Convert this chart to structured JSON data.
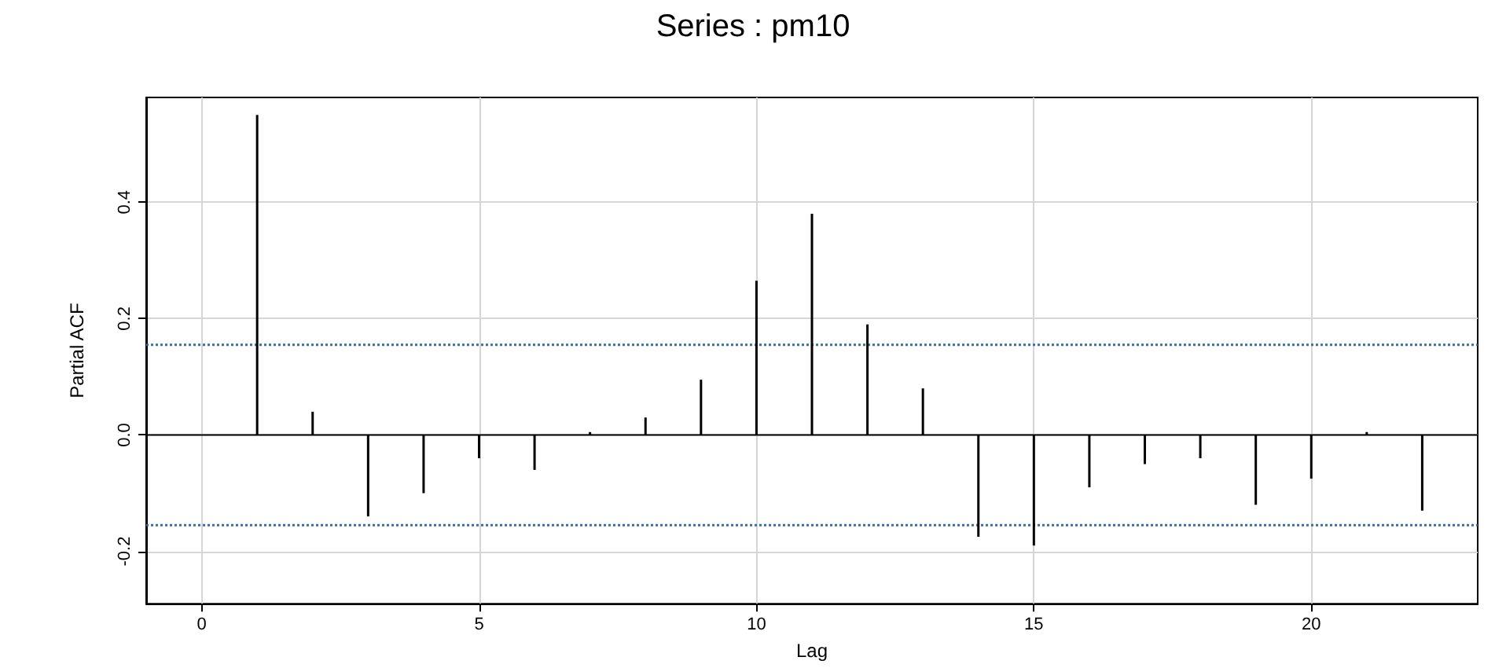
{
  "chart_data": {
    "type": "bar",
    "title": "Series : pm10",
    "xlabel": "Lag",
    "ylabel": "Partial ACF",
    "x": [
      1,
      2,
      3,
      4,
      5,
      6,
      7,
      8,
      9,
      10,
      11,
      12,
      13,
      14,
      15,
      16,
      17,
      18,
      19,
      20,
      21,
      22
    ],
    "values": [
      0.55,
      0.04,
      -0.14,
      -0.1,
      -0.04,
      -0.06,
      0.005,
      0.03,
      0.095,
      0.265,
      0.38,
      0.19,
      0.08,
      -0.175,
      -0.19,
      -0.09,
      -0.05,
      -0.04,
      -0.12,
      -0.075,
      0.005,
      -0.13
    ],
    "color": "#000000",
    "xlim": [
      -1,
      23
    ],
    "xticks": [
      0,
      5,
      10,
      15,
      20
    ],
    "ylim": [
      -0.29,
      0.58
    ],
    "yticks": [
      {
        "value": -0.2,
        "label": "-0.2"
      },
      {
        "value": 0,
        "label": "0.0"
      },
      {
        "value": 0.2,
        "label": "0.2"
      },
      {
        "value": 0.4,
        "label": "0.4"
      }
    ],
    "ref_lines": [
      {
        "axis": "y",
        "value": 0,
        "color": "#000000",
        "line_style": "solid"
      },
      {
        "axis": "y",
        "value": 0.155,
        "color": "#3a6ea5",
        "line_style": "dotted"
      },
      {
        "axis": "y",
        "value": -0.155,
        "color": "#3a6ea5",
        "line_style": "dotted"
      }
    ],
    "grid": true
  }
}
